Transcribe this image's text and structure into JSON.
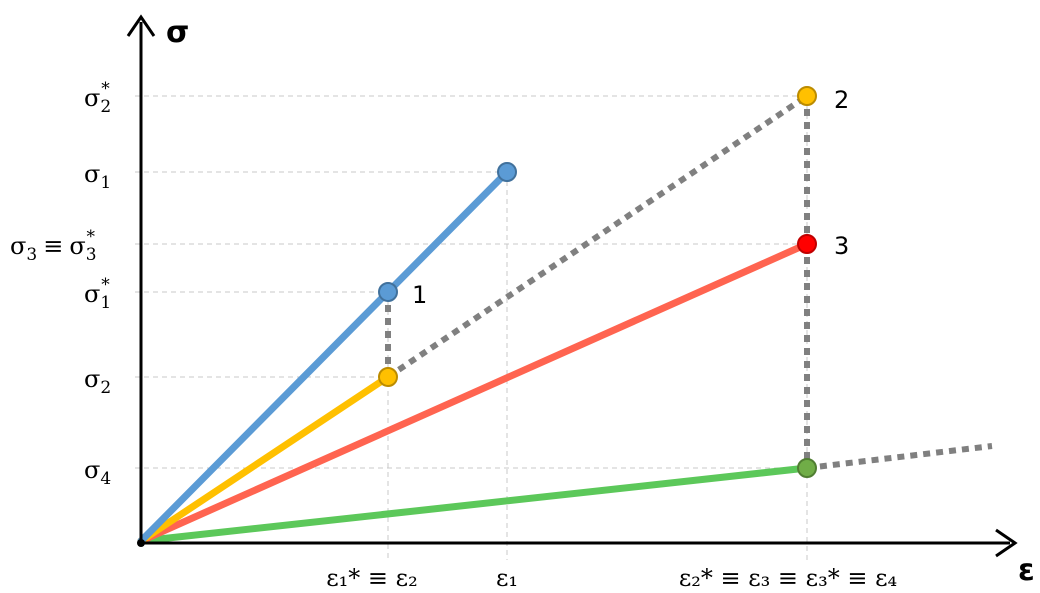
{
  "axes": {
    "y_title": "σ",
    "x_title": "ε"
  },
  "y_ticks": [
    {
      "id": "s2star",
      "base": "σ",
      "sub": "2",
      "sup": "*"
    },
    {
      "id": "s1",
      "base": "σ",
      "sub": "1"
    },
    {
      "id": "s3",
      "prefix": "σ",
      "prefix_sub": "3",
      "equiv": "≡",
      "base": "σ",
      "sub": "3",
      "sup": "*"
    },
    {
      "id": "s1star",
      "base": "σ",
      "sub": "1",
      "sup": "*"
    },
    {
      "id": "s2",
      "base": "σ",
      "sub": "2"
    },
    {
      "id": "s4",
      "base": "σ",
      "sub": "4"
    }
  ],
  "x_ticks": [
    {
      "id": "e1star",
      "text": "ε₁* ≡ ε₂"
    },
    {
      "id": "e1",
      "text": "ε₁"
    },
    {
      "id": "e2star",
      "text": "ε₂* ≡ ε₃ ≡ ε₃* ≡ ε₄"
    }
  ],
  "point_labels": {
    "p1": "1",
    "p2": "2",
    "p3": "3"
  },
  "colors": {
    "blue": "#5b9bd5",
    "yellow": "#ffc000",
    "red": "#ff6450",
    "green": "#5cc85a",
    "dotted": "#808080",
    "grid": "#c8c8c8",
    "marker_blue": "#5b9bd5",
    "marker_yellow": "#ffc000",
    "marker_red": "#ff0000",
    "marker_green": "#70ad47"
  },
  "lines": [
    {
      "name": "blue-loading-line",
      "color": "blue"
    },
    {
      "name": "yellow-loading-line",
      "color": "yellow"
    },
    {
      "name": "red-loading-line",
      "color": "red"
    },
    {
      "name": "green-loading-line",
      "color": "green"
    }
  ]
}
